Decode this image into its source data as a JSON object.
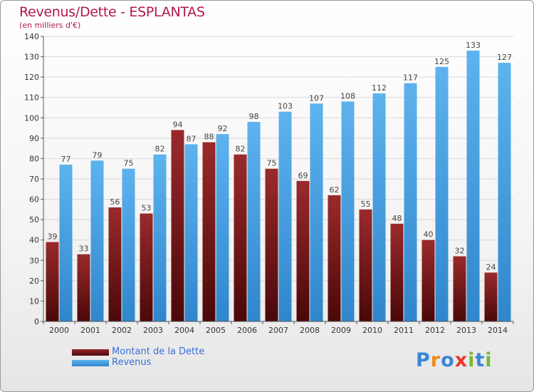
{
  "title": "Revenus/Dette - ESPLANTAS",
  "subtitle": "(en milliers d'€)",
  "colors": {
    "dette": "#7a1a1e",
    "revenus": "#4ea6e6",
    "title": "#b0174f",
    "legend_text": "#3a6fd8"
  },
  "legend": {
    "dette": "Montant de la Dette",
    "revenus": "Revenus"
  },
  "logo": {
    "letters": [
      "P",
      "r",
      "o",
      "x",
      "i",
      "t",
      "i"
    ],
    "colors": [
      "#3a86d8",
      "#f28a1a",
      "#3a86d8",
      "#e8372c",
      "#7ab733",
      "#3a86d8",
      "#7ab733"
    ]
  },
  "chart_data": {
    "type": "bar",
    "categories": [
      "2000",
      "2001",
      "2002",
      "2003",
      "2004",
      "2005",
      "2006",
      "2007",
      "2008",
      "2009",
      "2010",
      "2011",
      "2012",
      "2013",
      "2014"
    ],
    "series": [
      {
        "name": "Montant de la Dette",
        "values": [
          39,
          33,
          56,
          53,
          94,
          88,
          82,
          75,
          69,
          62,
          55,
          48,
          40,
          32,
          24
        ]
      },
      {
        "name": "Revenus",
        "values": [
          77,
          79,
          75,
          82,
          87,
          92,
          98,
          103,
          107,
          108,
          112,
          117,
          125,
          133,
          127
        ]
      }
    ],
    "title": "Revenus/Dette - ESPLANTAS",
    "ylabel": "(en milliers d'€)",
    "ylim": [
      0,
      140
    ],
    "yticks": [
      0,
      10,
      20,
      30,
      40,
      50,
      60,
      70,
      80,
      90,
      100,
      110,
      120,
      130,
      140
    ],
    "grid": true,
    "legend_position": "bottom-left"
  }
}
